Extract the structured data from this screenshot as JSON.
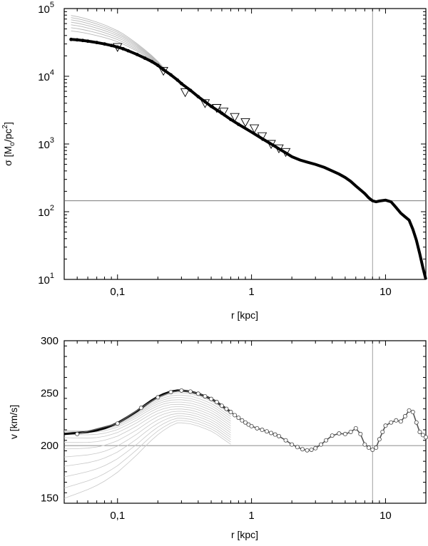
{
  "chart_data": [
    {
      "type": "line",
      "xlabel": "r [kpc]",
      "ylabel_main": "σ [M",
      "ylabel_sub": "o",
      "ylabel_mid": "/pc",
      "ylabel_sup": "2",
      "ylabel_end": "]",
      "x_scale": "log",
      "y_scale": "log",
      "xlim": [
        0.04,
        20
      ],
      "ylim": [
        10,
        100000
      ],
      "x_ticks": [
        {
          "v": 0.1,
          "label": "0,1"
        },
        {
          "v": 1,
          "label": "1"
        },
        {
          "v": 10,
          "label": "10"
        }
      ],
      "y_ticks": [
        {
          "v": 10,
          "base": "10",
          "exp": "1"
        },
        {
          "v": 100,
          "base": "10",
          "exp": "2"
        },
        {
          "v": 1000,
          "base": "10",
          "exp": "3"
        },
        {
          "v": 10000,
          "base": "10",
          "exp": "4"
        },
        {
          "v": 100000,
          "base": "10",
          "exp": "5"
        }
      ],
      "vline_x": 8,
      "hline_y": 145,
      "series": [
        {
          "style": "filled-dots",
          "x": [
            0.045,
            0.05,
            0.055,
            0.06,
            0.07,
            0.08,
            0.09,
            0.1,
            0.11,
            0.12,
            0.14,
            0.16,
            0.18,
            0.2,
            0.22,
            0.25,
            0.28,
            0.3,
            0.35,
            0.4,
            0.45,
            0.5,
            0.6,
            0.7,
            0.8,
            0.9,
            1.0,
            1.2,
            1.4,
            1.6,
            1.8,
            2.0,
            2.3,
            2.6,
            3.0,
            3.5,
            4.0,
            4.5,
            5.0,
            5.5,
            6.0,
            6.5,
            7.0,
            7.5,
            8.0,
            8.5,
            9.0,
            10.0,
            11.0,
            12.0,
            13.0,
            14.0,
            15.0,
            16.0,
            17.0,
            18.0,
            19.0,
            20.0
          ],
          "y": [
            35000,
            34500,
            33800,
            33000,
            31500,
            30000,
            28500,
            27000,
            25500,
            23800,
            21000,
            18500,
            16500,
            14500,
            12500,
            10500,
            8800,
            7800,
            6200,
            5000,
            4200,
            3600,
            2850,
            2300,
            1950,
            1700,
            1500,
            1200,
            1000,
            850,
            740,
            650,
            580,
            540,
            500,
            450,
            400,
            360,
            320,
            280,
            240,
            210,
            185,
            160,
            145,
            140,
            144,
            148,
            140,
            115,
            95,
            84,
            75,
            55,
            38,
            24,
            15,
            10
          ]
        },
        {
          "style": "triangles",
          "x": [
            0.1,
            0.22,
            0.32,
            0.45,
            0.55,
            0.62,
            0.75,
            0.9,
            1.05,
            1.2,
            1.4,
            1.6,
            1.8
          ],
          "y": [
            27000,
            12000,
            5800,
            4000,
            3400,
            3000,
            2500,
            2100,
            1700,
            1300,
            1000,
            860,
            760
          ]
        }
      ]
    },
    {
      "type": "line",
      "xlabel": "r [kpc]",
      "ylabel": "v [km/s]",
      "x_scale": "log",
      "y_scale": "linear",
      "xlim": [
        0.04,
        20
      ],
      "ylim": [
        145,
        300
      ],
      "x_ticks": [
        {
          "v": 0.1,
          "label": "0,1"
        },
        {
          "v": 1,
          "label": "1"
        },
        {
          "v": 10,
          "label": "10"
        }
      ],
      "y_ticks": [
        {
          "v": 150,
          "label": "150"
        },
        {
          "v": 200,
          "label": "200"
        },
        {
          "v": 250,
          "label": "250"
        },
        {
          "v": 300,
          "label": "300"
        }
      ],
      "vline_x": 8,
      "hline_y": 200,
      "series": [
        {
          "style": "thick-line",
          "x": [
            0.04,
            0.05,
            0.06,
            0.07,
            0.08,
            0.09,
            0.1,
            0.12,
            0.14,
            0.16,
            0.18,
            0.2,
            0.22,
            0.25,
            0.28,
            0.3,
            0.35,
            0.4,
            0.45,
            0.5,
            0.55,
            0.6,
            0.7
          ],
          "y": [
            211,
            212,
            213,
            214.5,
            216.5,
            219,
            221.5,
            227.5,
            233,
            238.5,
            243,
            246.5,
            249,
            251.5,
            252.5,
            252.5,
            251.5,
            249.5,
            247,
            244.5,
            241.5,
            238,
            232
          ]
        },
        {
          "style": "open-circles",
          "x": [
            0.05,
            0.1,
            0.15,
            0.2,
            0.25,
            0.3,
            0.35,
            0.4,
            0.45,
            0.5,
            0.55,
            0.6,
            0.65,
            0.7,
            0.75,
            0.8,
            0.85,
            0.9,
            0.95,
            1.0,
            1.1,
            1.2,
            1.3,
            1.4,
            1.5,
            1.6,
            1.8,
            2.0,
            2.2,
            2.4,
            2.6,
            2.8,
            3.0,
            3.3,
            3.6,
            4.0,
            4.5,
            5.0,
            5.5,
            6.0,
            6.5,
            7.0,
            7.5,
            8.0,
            8.5,
            9.0,
            9.5,
            10.0,
            11.0,
            12.0,
            13.0,
            14.0,
            15.0,
            16.0,
            17.0,
            18.0,
            19.0,
            20.0
          ],
          "y": [
            211,
            221,
            236,
            246,
            251,
            252.5,
            251.5,
            249.5,
            247,
            244.5,
            241.5,
            238,
            235,
            232,
            229,
            226.5,
            224,
            222,
            220,
            218.5,
            216.5,
            215,
            213.5,
            212,
            210.5,
            209,
            205,
            201,
            198.5,
            196.5,
            195.5,
            196,
            197.5,
            201,
            205,
            209.5,
            211.5,
            211,
            213,
            216.5,
            211,
            201,
            198,
            196,
            198,
            206,
            213,
            219,
            222,
            224,
            223,
            228,
            233.5,
            232,
            222,
            213,
            210,
            208
          ]
        }
      ],
      "model_family_y_at_end": [
        245,
        240,
        233,
        226,
        219,
        211,
        203,
        195,
        186,
        177,
        168,
        159,
        151,
        145
      ]
    }
  ]
}
